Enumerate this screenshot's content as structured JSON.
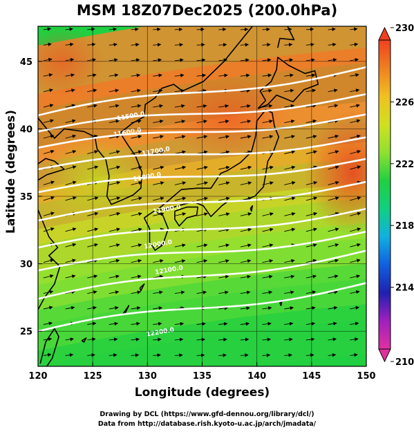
{
  "title": "MSM 18Z07Dec2025 (200.0hPa)",
  "xlabel": "Longitude (degrees)",
  "ylabel": "Latitude  (degrees)",
  "footer": {
    "line1": "Drawing by DCL (https://www.gfd-dennou.org/library/dcl/)",
    "line2": "Data from http://database.rish.kyoto-u.ac.jp/arch/jmadata/"
  },
  "chart_data": {
    "type": "heatmap",
    "description_fields": "temperature shading with geopotential height contours and wind vectors",
    "xlim": [
      120,
      150
    ],
    "ylim": [
      22.4,
      47.6
    ],
    "x_ticks": [
      "120",
      "125",
      "130",
      "135",
      "140",
      "145",
      "150"
    ],
    "y_ticks": [
      "25",
      "30",
      "35",
      "40",
      "45"
    ],
    "colorbar": {
      "min": 210,
      "max": 230,
      "ticks": [
        "210",
        "214",
        "218",
        "222",
        "226",
        "230"
      ],
      "colors": [
        "#e030a0",
        "#a020c0",
        "#2020b0",
        "#1060e0",
        "#10b0e0",
        "#10d080",
        "#20d040",
        "#90e030",
        "#d0e020",
        "#f0c020",
        "#f08020",
        "#f04020"
      ]
    },
    "contours": [
      {
        "label": "11500.0",
        "lon": 128.5,
        "lat": 40.8
      },
      {
        "label": "11600.0",
        "lon": 128.2,
        "lat": 39.6
      },
      {
        "label": "11700.0",
        "lon": 130.8,
        "lat": 38.2
      },
      {
        "label": "11800.0",
        "lon": 130.0,
        "lat": 36.3
      },
      {
        "label": "11900.0",
        "lon": 131.8,
        "lat": 33.9
      },
      {
        "label": "12000.0",
        "lon": 131.0,
        "lat": 31.3
      },
      {
        "label": "12100.0",
        "lon": 132.0,
        "lat": 29.4
      },
      {
        "label": "12200.0",
        "lon": 131.2,
        "lat": 24.8
      }
    ]
  }
}
